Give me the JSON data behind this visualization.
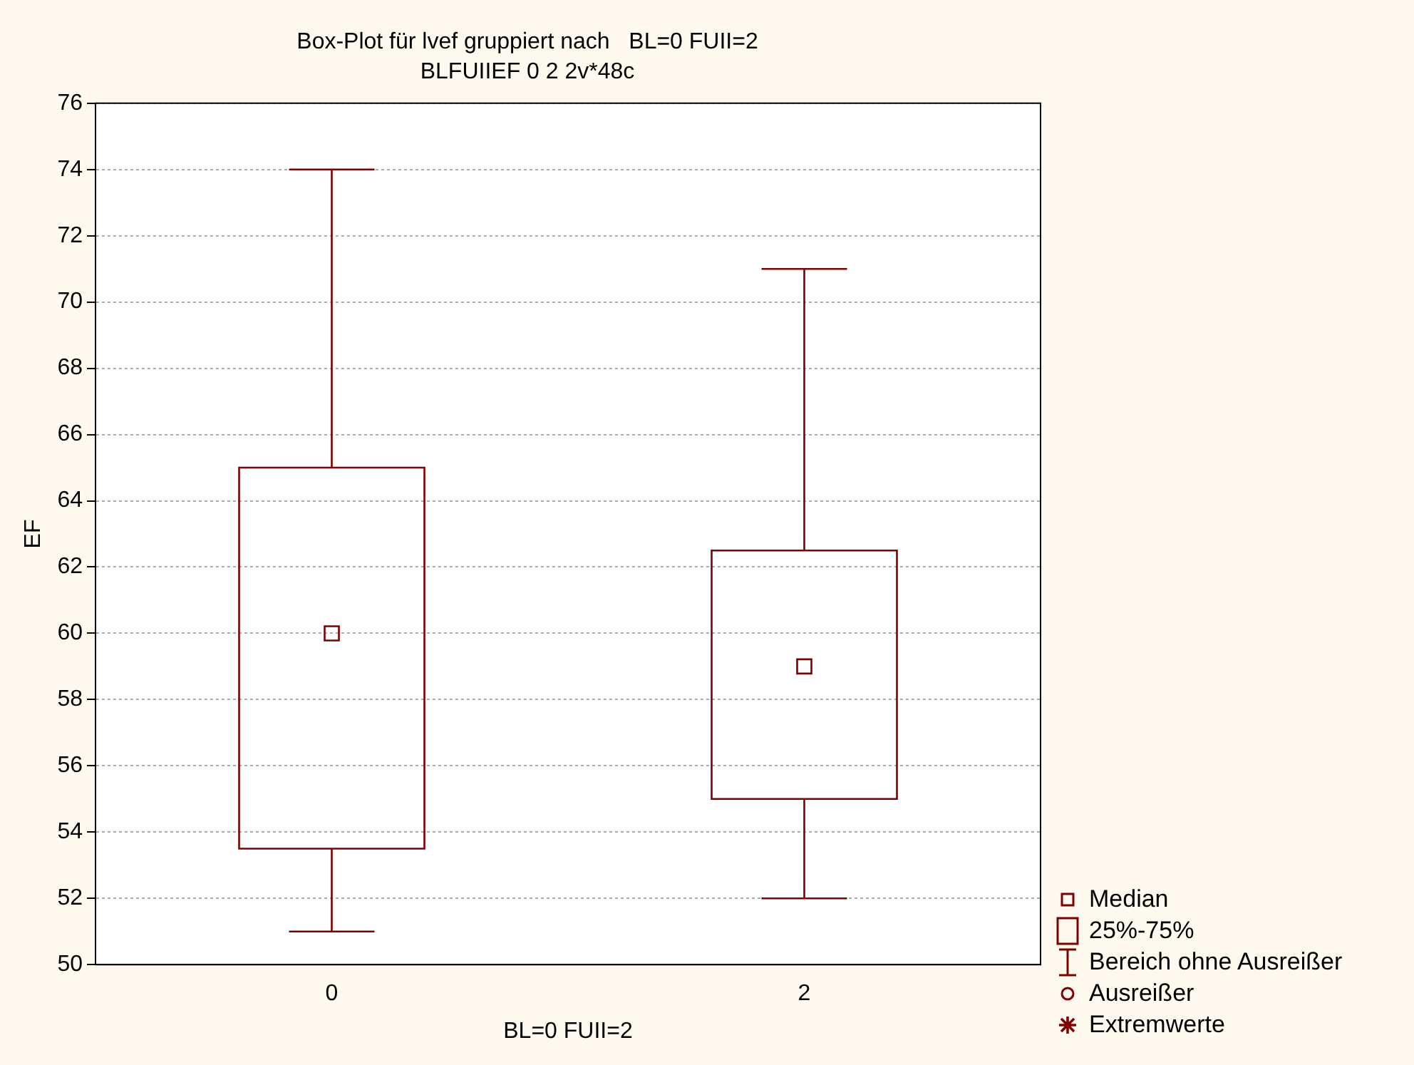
{
  "chart_data": {
    "type": "box",
    "title": "Box-Plot für lvef gruppiert nach   BL=0 FUII=2",
    "subtitle": "BLFUIIEF 0 2 2v*48c",
    "xlabel": "BL=0 FUII=2",
    "ylabel": "EF",
    "categories": [
      "0",
      "2"
    ],
    "series": [
      {
        "color": "#800000",
        "boxes": [
          {
            "low": 51,
            "q1": 53.5,
            "median": 60,
            "q3": 65,
            "high": 74
          },
          {
            "low": 52,
            "q1": 55,
            "median": 59,
            "q3": 62.5,
            "high": 71
          }
        ]
      }
    ],
    "ylim": [
      50,
      76
    ],
    "yticks": [
      50,
      52,
      54,
      56,
      58,
      60,
      62,
      64,
      66,
      68,
      70,
      72,
      74,
      76
    ],
    "grid": "y",
    "marker": "square",
    "annotations": [
      "Median",
      "25%-75%",
      "Bereich ohne Ausreißer",
      "Ausreißer",
      "Extremwerte"
    ]
  }
}
